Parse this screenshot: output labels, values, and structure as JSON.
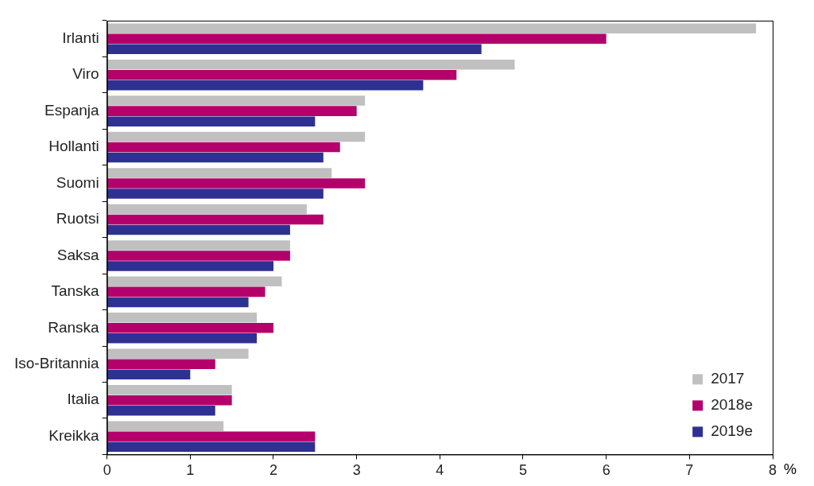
{
  "chart_data": {
    "type": "bar",
    "orientation": "horizontal",
    "categories": [
      "Irlanti",
      "Viro",
      "Espanja",
      "Hollanti",
      "Suomi",
      "Ruotsi",
      "Saksa",
      "Tanska",
      "Ranska",
      "Iso-Britannia",
      "Italia",
      "Kreikka"
    ],
    "series": [
      {
        "name": "2017",
        "color": "#c0c0c0",
        "values": [
          7.8,
          4.9,
          3.1,
          3.1,
          2.7,
          2.4,
          2.2,
          2.1,
          1.8,
          1.7,
          1.5,
          1.4
        ]
      },
      {
        "name": "2018e",
        "color": "#b4006b",
        "values": [
          6.0,
          4.2,
          3.0,
          2.8,
          3.1,
          2.6,
          2.2,
          1.9,
          2.0,
          1.3,
          1.5,
          2.5
        ]
      },
      {
        "name": "2019e",
        "color": "#2e3192",
        "values": [
          4.5,
          3.8,
          2.5,
          2.6,
          2.6,
          2.2,
          2.0,
          1.7,
          1.8,
          1.0,
          1.3,
          2.5
        ]
      }
    ],
    "x_label": "%",
    "xlim": [
      0,
      8
    ],
    "xticks": [
      0,
      1,
      2,
      3,
      4,
      5,
      6,
      7,
      8
    ],
    "grid": false,
    "legend": "bottom-right"
  }
}
